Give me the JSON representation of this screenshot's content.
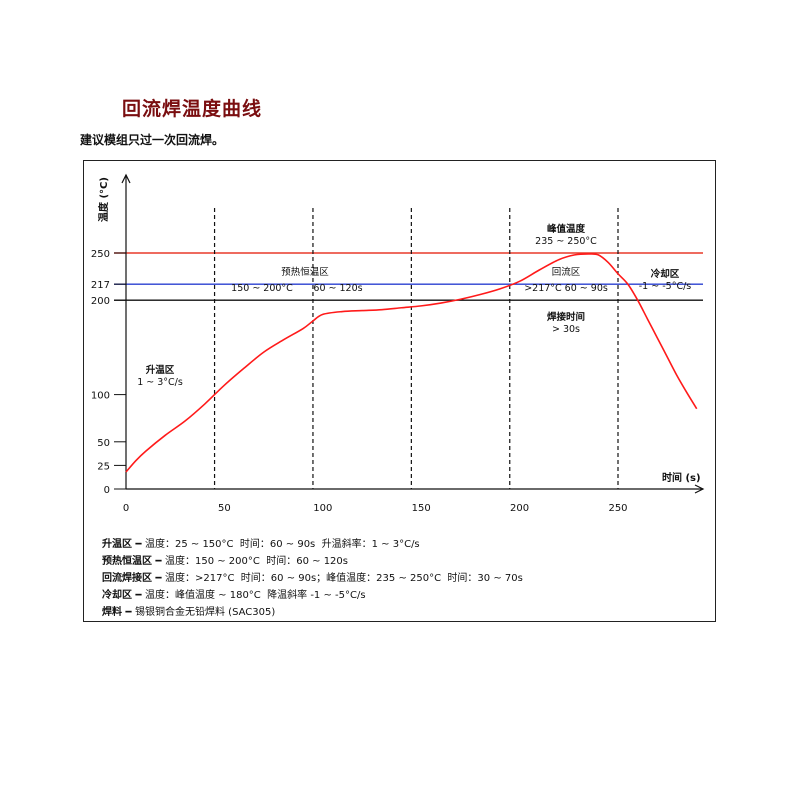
{
  "header": {
    "title": "回流焊温度曲线",
    "subtitle": "建议模组只过一次回流焊。"
  },
  "colors": {
    "curve": "#ff1a1a",
    "line_250": "#e83a2a",
    "line_217": "#2a3fd0",
    "line_200": "#111111",
    "title": "#7a0e10"
  },
  "chart_data": {
    "type": "line",
    "xlabel": "时间 (s)",
    "ylabel": "温度 (°C)",
    "x_ticks": [
      0,
      50,
      100,
      150,
      200,
      250
    ],
    "y_ticks": [
      0,
      25,
      50,
      100,
      200,
      217,
      250
    ],
    "xlim": [
      0,
      290
    ],
    "ylim": [
      0,
      310
    ],
    "reference_lines": [
      {
        "y": 250,
        "color": "#e83a2a"
      },
      {
        "y": 217,
        "color": "#2a3fd0"
      },
      {
        "y": 200,
        "color": "#111111"
      }
    ],
    "zone_dividers_x": [
      45,
      95,
      145,
      195,
      250
    ],
    "series": [
      {
        "x": [
          0,
          5,
          10,
          20,
          30,
          40,
          50,
          60,
          70,
          80,
          90,
          95,
          100,
          110,
          120,
          130,
          140,
          150,
          160,
          170,
          180,
          190,
          200,
          210,
          220,
          228,
          235,
          240,
          245,
          250,
          255,
          260,
          265,
          270,
          275,
          280,
          285,
          290
        ],
        "y": [
          18,
          30,
          40,
          57,
          72,
          90,
          110,
          128,
          145,
          158,
          170,
          178,
          185,
          188,
          189,
          190,
          192,
          194,
          197,
          201,
          206,
          212,
          220,
          232,
          243,
          248,
          249,
          248,
          240,
          228,
          217,
          200,
          180,
          160,
          140,
          120,
          102,
          85
        ]
      }
    ],
    "annotations": [
      {
        "lines": [
          "升温区",
          "1 ~ 3°C/s"
        ]
      },
      {
        "lines": [
          "预热恒温区"
        ]
      },
      {
        "lines": [
          "150 ~ 200°C"
        ]
      },
      {
        "lines": [
          "60 ~ 120s"
        ]
      },
      {
        "lines": [
          "峰值温度",
          "235 ~ 250°C"
        ]
      },
      {
        "lines": [
          "回流区"
        ]
      },
      {
        "lines": [
          ">217°C  60 ~ 90s"
        ]
      },
      {
        "lines": [
          "焊接时间",
          "> 30s"
        ]
      },
      {
        "lines": [
          "冷却区",
          "-1 ~ -5°C/s"
        ]
      }
    ]
  },
  "legend": [
    {
      "key": "升温区 ━ ",
      "text": "温度：25 ~ 150°C  时间：60 ~ 90s  升温斜率：1 ~ 3°C/s"
    },
    {
      "key": "预热恒温区 ━ ",
      "text": "温度：150 ~ 200°C  时间：60 ~ 120s"
    },
    {
      "key": "回流焊接区 ━ ",
      "text": "温度：>217°C  时间：60 ~ 90s；峰值温度：235 ~ 250°C  时间：30 ~ 70s"
    },
    {
      "key": "冷却区 ━ ",
      "text": "温度：峰值温度 ~ 180°C  降温斜率 -1 ~ -5°C/s"
    },
    {
      "key": "焊料 ━ ",
      "text": "锡银铜合金无铅焊料 (SAC305)"
    }
  ]
}
